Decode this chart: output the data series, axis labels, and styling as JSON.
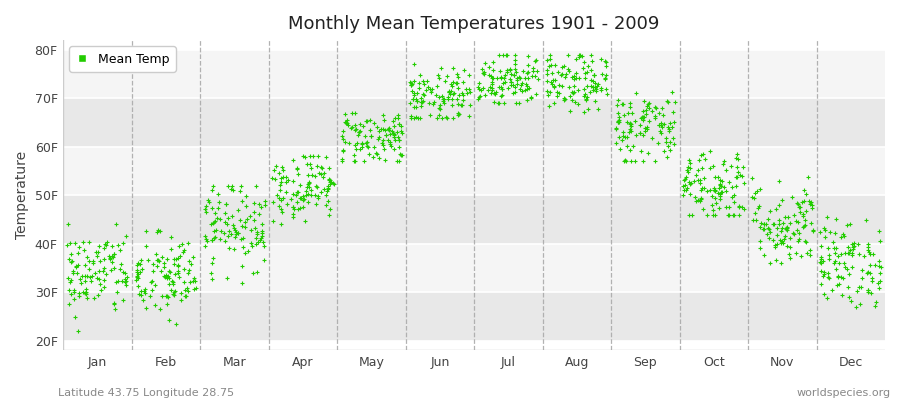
{
  "title": "Monthly Mean Temperatures 1901 - 2009",
  "ylabel": "Temperature",
  "xlabel_labels": [
    "Jan",
    "Feb",
    "Mar",
    "Apr",
    "May",
    "Jun",
    "Jul",
    "Aug",
    "Sep",
    "Oct",
    "Nov",
    "Dec"
  ],
  "ytick_labels": [
    "20F",
    "30F",
    "40F",
    "50F",
    "60F",
    "70F",
    "80F"
  ],
  "ytick_values": [
    20,
    30,
    40,
    50,
    60,
    70,
    80
  ],
  "ylim": [
    18,
    82
  ],
  "legend_label": "Mean Temp",
  "dot_color": "#22cc00",
  "fig_bg_color": "#ffffff",
  "plot_bg_color": "#ffffff",
  "band_color_light": "#f5f5f5",
  "band_color_dark": "#e8e8e8",
  "grid_color": "#ffffff",
  "subtitle_left": "Latitude 43.75 Longitude 28.75",
  "subtitle_right": "worldspecies.org",
  "num_years": 109,
  "seed": 42,
  "monthly_means_f": [
    34,
    33,
    44,
    52,
    62,
    70,
    74,
    73,
    64,
    52,
    44,
    36
  ],
  "monthly_stds_f": [
    4.5,
    4.5,
    4.5,
    3.5,
    3,
    3,
    3,
    3,
    4,
    4,
    4.5,
    4.5
  ],
  "monthly_mins_f": [
    20,
    21,
    32,
    44,
    57,
    66,
    69,
    67,
    57,
    46,
    36,
    27
  ],
  "monthly_maxs_f": [
    44,
    44,
    52,
    58,
    67,
    77,
    79,
    79,
    73,
    63,
    59,
    48
  ]
}
